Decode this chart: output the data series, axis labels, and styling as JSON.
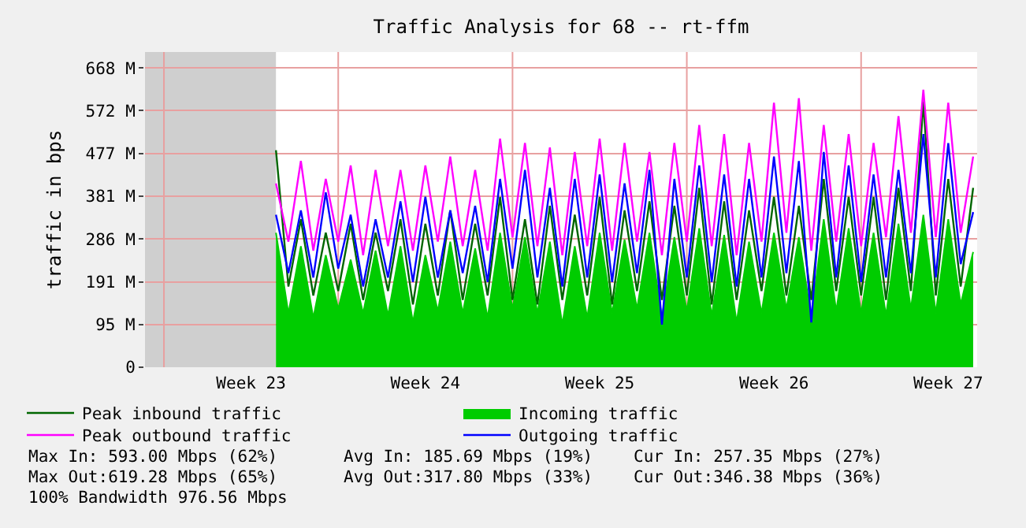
{
  "chart_data": {
    "type": "line",
    "title": "Traffic Analysis for 68 -- rt-ffm",
    "ylabel": "traffic in bps",
    "categories": [
      null,
      null,
      null,
      null,
      null,
      null,
      null,
      null,
      "Week 23",
      null,
      null,
      null,
      null,
      null,
      null,
      null,
      null,
      null,
      null,
      null,
      null,
      null,
      "Week 24",
      null,
      null,
      null,
      null,
      null,
      null,
      null,
      null,
      null,
      null,
      null,
      null,
      null,
      "Week 25",
      null,
      null,
      null,
      null,
      null,
      null,
      null,
      null,
      null,
      null,
      null,
      null,
      null,
      "Week 26",
      null,
      null,
      null,
      null,
      null,
      null,
      null,
      null,
      null,
      null,
      null,
      null,
      null,
      "Week 27",
      null,
      null
    ],
    "series": [
      {
        "name": "Peak inbound traffic",
        "color": "#006600",
        "values": [
          null,
          null,
          null,
          null,
          null,
          null,
          null,
          null,
          null,
          null,
          484,
          180,
          330,
          160,
          300,
          170,
          320,
          150,
          300,
          170,
          330,
          140,
          320,
          160,
          350,
          150,
          320,
          160,
          380,
          150,
          330,
          140,
          360,
          150,
          340,
          160,
          380,
          140,
          350,
          170,
          370,
          150,
          360,
          160,
          400,
          140,
          370,
          150,
          350,
          170,
          380,
          160,
          360,
          150,
          420,
          170,
          380,
          160,
          380,
          150,
          400,
          170,
          593,
          160,
          420,
          180,
          400
        ]
      },
      {
        "name": "Incoming traffic",
        "type": "area",
        "color": "#00cc00",
        "values": [
          null,
          null,
          null,
          null,
          null,
          null,
          null,
          null,
          null,
          null,
          300,
          120,
          270,
          110,
          250,
          130,
          240,
          120,
          260,
          115,
          270,
          100,
          250,
          125,
          280,
          120,
          265,
          110,
          300,
          130,
          290,
          120,
          280,
          95,
          270,
          110,
          300,
          120,
          285,
          130,
          300,
          110,
          290,
          125,
          310,
          115,
          295,
          100,
          280,
          120,
          300,
          130,
          290,
          110,
          330,
          125,
          310,
          120,
          300,
          115,
          320,
          130,
          340,
          120,
          330,
          140,
          257
        ]
      },
      {
        "name": "Peak outbound traffic",
        "color": "#ff00ff",
        "values": [
          null,
          null,
          null,
          null,
          null,
          null,
          null,
          null,
          null,
          null,
          410,
          280,
          460,
          260,
          420,
          280,
          450,
          250,
          440,
          270,
          440,
          260,
          450,
          280,
          470,
          270,
          440,
          260,
          510,
          290,
          500,
          270,
          490,
          250,
          480,
          270,
          510,
          260,
          500,
          280,
          480,
          250,
          500,
          280,
          540,
          270,
          520,
          250,
          500,
          280,
          590,
          300,
          600,
          260,
          540,
          280,
          520,
          270,
          500,
          290,
          560,
          300,
          619,
          290,
          590,
          300,
          470
        ]
      },
      {
        "name": "Outgoing traffic",
        "color": "#0000ff",
        "values": [
          null,
          null,
          null,
          null,
          null,
          null,
          null,
          null,
          null,
          null,
          340,
          210,
          350,
          200,
          390,
          220,
          340,
          180,
          330,
          200,
          370,
          190,
          380,
          200,
          350,
          210,
          360,
          190,
          420,
          220,
          440,
          200,
          400,
          180,
          420,
          200,
          430,
          190,
          410,
          210,
          440,
          95,
          420,
          200,
          450,
          190,
          430,
          180,
          420,
          200,
          470,
          210,
          460,
          100,
          480,
          200,
          450,
          190,
          430,
          200,
          440,
          210,
          520,
          200,
          500,
          230,
          346
        ]
      }
    ],
    "ylim": [
      0,
      703
    ],
    "yticks": [
      0,
      {
        "value": 95.4,
        "label": "95 M"
      },
      {
        "value": 190.7,
        "label": "191 M"
      },
      {
        "value": 286.1,
        "label": "286 M"
      },
      {
        "value": 381.5,
        "label": "381 M"
      },
      {
        "value": 476.8,
        "label": "477 M"
      },
      {
        "value": 572.2,
        "label": "572 M"
      },
      {
        "value": 667.6,
        "label": "668 M"
      }
    ],
    "grid": true,
    "legend": "bottom",
    "annotations": [
      "Max In: 593.00 Mbps (62%)",
      "Avg In: 185.69 Mbps (19%)",
      "Cur In: 257.35 Mbps (27%)",
      "Max Out:619.28 Mbps (65%)",
      "Avg Out:317.80 Mbps (33%)",
      "Cur Out:346.38 Mbps (36%)",
      "100% Bandwidth 976.56 Mbps"
    ]
  }
}
